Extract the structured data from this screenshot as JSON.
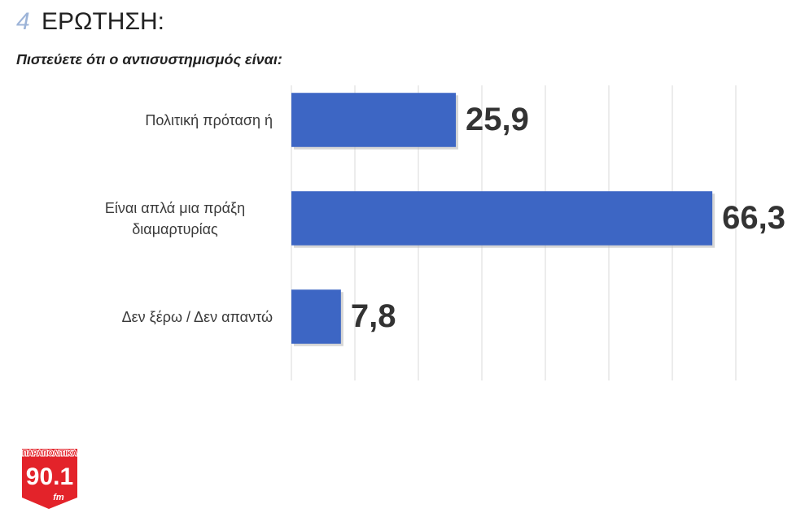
{
  "header": {
    "number": "4",
    "title": "ΕΡΩΤΗΣΗ:",
    "subtitle": "Πιστεύετε ότι ο αντισυστημισμός είναι:"
  },
  "chart_data": {
    "type": "bar",
    "orientation": "horizontal",
    "categories": [
      "Πολιτική πρόταση ή",
      "Είναι απλά μια πράξη διαμαρτυρίας",
      "Δεν ξέρω / Δεν απαντώ"
    ],
    "values": [
      25.9,
      66.3,
      7.8
    ],
    "value_labels": [
      "25,9",
      "66,3",
      "7,8"
    ],
    "color": "#3d66c4",
    "xlim": [
      0,
      70
    ],
    "xticks": [
      0,
      10,
      20,
      30,
      40,
      50,
      60,
      70
    ],
    "grid": true
  },
  "logo": {
    "name": "ΠΑΡΑΠΟΛΙΤΙΚΑ",
    "frequency": "90.1",
    "unit": "fm"
  }
}
